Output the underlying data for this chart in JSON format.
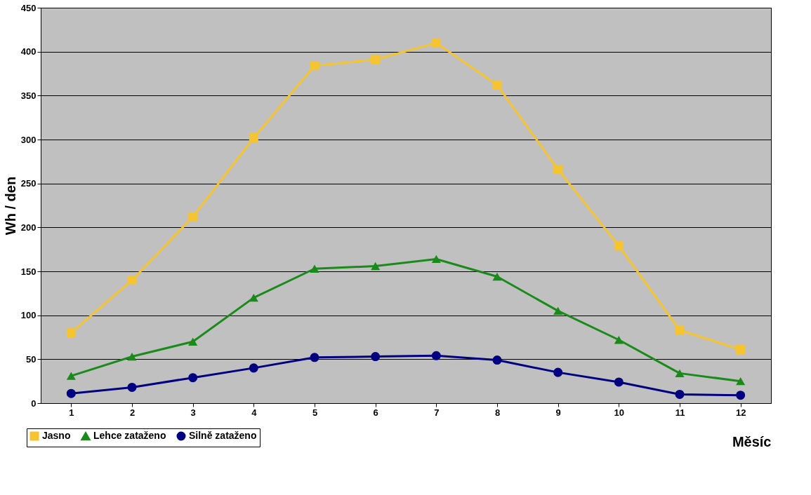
{
  "chart_data": {
    "type": "line",
    "xlabel": "Měsíc",
    "ylabel": "Wh / den",
    "categories": [
      "1",
      "2",
      "3",
      "4",
      "5",
      "6",
      "7",
      "8",
      "9",
      "10",
      "11",
      "12"
    ],
    "series": [
      {
        "name": "Jasno",
        "color": "#f5c431",
        "marker": "square",
        "values": [
          80,
          140,
          212,
          302,
          384,
          391,
          410,
          362,
          266,
          179,
          83,
          61
        ]
      },
      {
        "name": "Lehce zataženo",
        "color": "#1a8a1a",
        "marker": "triangle",
        "values": [
          31,
          53,
          70,
          120,
          153,
          156,
          164,
          144,
          105,
          72,
          34,
          25
        ]
      },
      {
        "name": "Silně zataženo",
        "color": "#000080",
        "marker": "circle",
        "values": [
          11,
          18,
          29,
          40,
          52,
          53,
          54,
          49,
          35,
          24,
          10,
          9
        ]
      }
    ],
    "ylim": [
      0,
      450
    ],
    "yticks": [
      0,
      50,
      100,
      150,
      200,
      250,
      300,
      350,
      400,
      450
    ],
    "grid": "y",
    "legend": "bottom left",
    "line_style": "solid"
  }
}
